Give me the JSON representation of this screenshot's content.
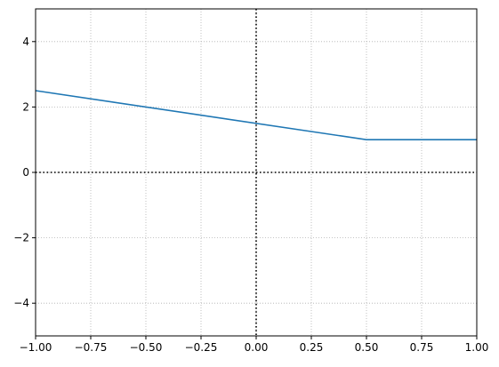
{
  "chart_data": {
    "type": "line",
    "title": "",
    "xlabel": "",
    "ylabel": "",
    "xlim": [
      -1.0,
      1.0
    ],
    "ylim": [
      -5,
      5
    ],
    "grid": true,
    "x_ticks": [
      -1.0,
      -0.75,
      -0.5,
      -0.25,
      0.0,
      0.25,
      0.5,
      0.75,
      1.0
    ],
    "x_tick_labels": [
      "−1.00",
      "−0.75",
      "−0.50",
      "−0.25",
      "0.00",
      "0.25",
      "0.50",
      "0.75",
      "1.00"
    ],
    "y_ticks": [
      -4,
      -2,
      0,
      2,
      4
    ],
    "y_tick_labels": [
      "−4",
      "−2",
      "0",
      "2",
      "4"
    ],
    "series": [
      {
        "color": "#1f77b4",
        "x": [
          -1.0,
          0.5,
          1.0
        ],
        "y": [
          2.5,
          1.0,
          1.0
        ]
      }
    ],
    "reference_lines": [
      {
        "orientation": "horizontal",
        "value": 0,
        "style": "dotted",
        "color": "#000000"
      },
      {
        "orientation": "vertical",
        "value": 0,
        "style": "dotted",
        "color": "#000000"
      }
    ]
  }
}
